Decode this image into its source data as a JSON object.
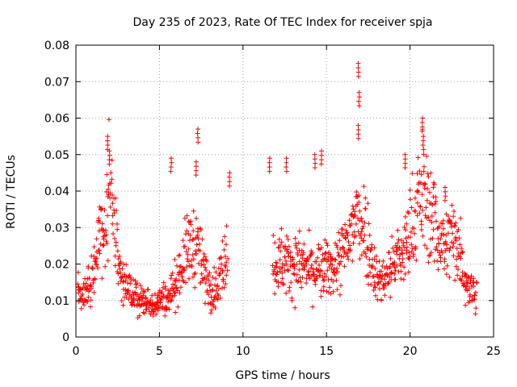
{
  "chart_data": {
    "type": "scatter",
    "title": "Day 235 of 2023, Rate Of TEC Index for receiver spja",
    "xlabel": "GPS time / hours",
    "ylabel": "ROTI / TECUs",
    "xlim": [
      0,
      25
    ],
    "ylim": [
      0,
      0.08
    ],
    "xticks": [
      "0",
      "5",
      "10",
      "15",
      "20",
      "25"
    ],
    "yticks": [
      "0",
      "0.01",
      "0.02",
      "0.03",
      "0.04",
      "0.05",
      "0.06",
      "0.07",
      "0.08"
    ],
    "grid": true,
    "marker": "+",
    "color": "#ff0000",
    "segments": [
      {
        "x": 0.1,
        "y": 0.012
      },
      {
        "x": 0.4,
        "y": 0.01
      },
      {
        "x": 0.7,
        "y": 0.013
      },
      {
        "x": 1.0,
        "y": 0.018
      },
      {
        "x": 1.3,
        "y": 0.026
      },
      {
        "x": 1.6,
        "y": 0.028
      },
      {
        "x": 1.85,
        "y": 0.036
      },
      {
        "x": 2.0,
        "y": 0.044
      },
      {
        "x": 2.15,
        "y": 0.04
      },
      {
        "x": 2.3,
        "y": 0.03
      },
      {
        "x": 2.5,
        "y": 0.022
      },
      {
        "x": 2.75,
        "y": 0.016
      },
      {
        "x": 3.0,
        "y": 0.013
      },
      {
        "x": 3.5,
        "y": 0.011
      },
      {
        "x": 4.0,
        "y": 0.01
      },
      {
        "x": 4.5,
        "y": 0.009
      },
      {
        "x": 5.0,
        "y": 0.01
      },
      {
        "x": 5.5,
        "y": 0.011
      },
      {
        "x": 5.9,
        "y": 0.014
      },
      {
        "x": 6.3,
        "y": 0.019
      },
      {
        "x": 6.7,
        "y": 0.024
      },
      {
        "x": 7.0,
        "y": 0.026
      },
      {
        "x": 7.3,
        "y": 0.024
      },
      {
        "x": 7.7,
        "y": 0.017
      },
      {
        "x": 8.1,
        "y": 0.013
      },
      {
        "x": 8.5,
        "y": 0.014
      },
      {
        "x": 8.9,
        "y": 0.022
      },
      {
        "x": 9.1,
        "y": 0.026
      },
      {
        "x": 11.8,
        "y": 0.02
      },
      {
        "x": 12.3,
        "y": 0.021
      },
      {
        "x": 12.8,
        "y": 0.02
      },
      {
        "x": 13.3,
        "y": 0.02
      },
      {
        "x": 13.8,
        "y": 0.019
      },
      {
        "x": 14.3,
        "y": 0.018
      },
      {
        "x": 14.8,
        "y": 0.018
      },
      {
        "x": 15.3,
        "y": 0.019
      },
      {
        "x": 15.8,
        "y": 0.021
      },
      {
        "x": 16.3,
        "y": 0.026
      },
      {
        "x": 16.7,
        "y": 0.032
      },
      {
        "x": 17.0,
        "y": 0.033
      },
      {
        "x": 17.3,
        "y": 0.03
      },
      {
        "x": 17.7,
        "y": 0.022
      },
      {
        "x": 18.1,
        "y": 0.015
      },
      {
        "x": 18.6,
        "y": 0.017
      },
      {
        "x": 19.1,
        "y": 0.021
      },
      {
        "x": 19.5,
        "y": 0.022
      },
      {
        "x": 19.9,
        "y": 0.026
      },
      {
        "x": 20.3,
        "y": 0.034
      },
      {
        "x": 20.7,
        "y": 0.04
      },
      {
        "x": 22.1,
        "y": 0.024
      },
      {
        "x": 22.5,
        "y": 0.028
      },
      {
        "x": 22.9,
        "y": 0.026
      },
      {
        "x": 23.3,
        "y": 0.016
      },
      {
        "x": 23.7,
        "y": 0.013
      },
      {
        "x": 24.0,
        "y": 0.013
      }
    ],
    "peaks": [
      {
        "x": 1.9,
        "y": 0.055
      },
      {
        "x": 2.0,
        "y": 0.051
      },
      {
        "x": 5.7,
        "y": 0.049
      },
      {
        "x": 7.3,
        "y": 0.057
      },
      {
        "x": 7.2,
        "y": 0.048
      },
      {
        "x": 9.2,
        "y": 0.045
      },
      {
        "x": 11.6,
        "y": 0.049
      },
      {
        "x": 12.6,
        "y": 0.049
      },
      {
        "x": 14.3,
        "y": 0.05
      },
      {
        "x": 14.7,
        "y": 0.051
      },
      {
        "x": 16.9,
        "y": 0.075
      },
      {
        "x": 16.95,
        "y": 0.067
      },
      {
        "x": 16.9,
        "y": 0.058
      },
      {
        "x": 19.7,
        "y": 0.05
      },
      {
        "x": 20.75,
        "y": 0.06
      },
      {
        "x": 20.8,
        "y": 0.055
      },
      {
        "x": 22.1,
        "y": 0.041
      }
    ]
  }
}
